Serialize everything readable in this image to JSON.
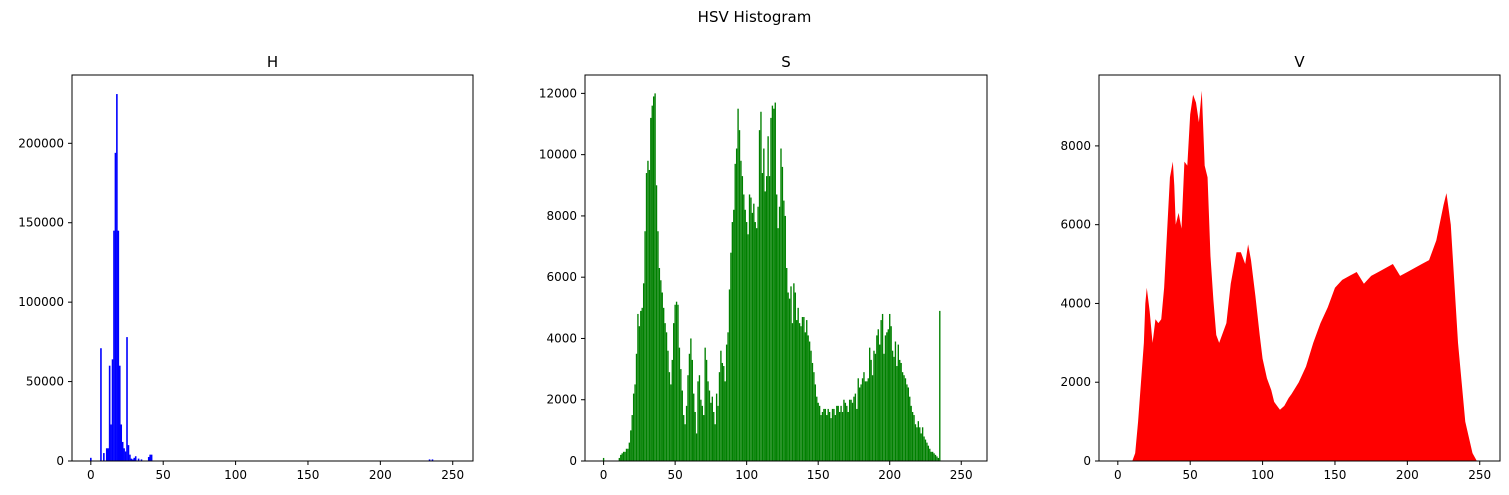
{
  "figure": {
    "suptitle": "HSV Histogram"
  },
  "chart_data": [
    {
      "type": "bar",
      "title": "H",
      "color": "#0000ff",
      "xlim": [
        -13,
        264
      ],
      "ylim": [
        0,
        243000
      ],
      "xticks": [
        0,
        50,
        100,
        150,
        200,
        250
      ],
      "yticks": [
        0,
        50000,
        100000,
        150000,
        200000
      ],
      "x": [
        0,
        7,
        9,
        11,
        12,
        13,
        14,
        15,
        16,
        17,
        18,
        19,
        20,
        21,
        22,
        23,
        24,
        25,
        26,
        27,
        28,
        29,
        30,
        31,
        33,
        35,
        40,
        41,
        42,
        234,
        236
      ],
      "values": [
        2000,
        71000,
        5000,
        8000,
        8000,
        60000,
        23000,
        64000,
        145000,
        194000,
        231000,
        145000,
        60000,
        23000,
        12000,
        8000,
        6000,
        78000,
        10000,
        4000,
        1500,
        1000,
        2000,
        3000,
        1500,
        1000,
        2500,
        4000,
        4000,
        1000,
        1000
      ]
    },
    {
      "type": "bar",
      "title": "S",
      "color": "#008000",
      "xlim": [
        -13,
        268
      ],
      "ylim": [
        0,
        12600
      ],
      "xticks": [
        0,
        50,
        100,
        150,
        200,
        250
      ],
      "yticks": [
        0,
        2000,
        4000,
        6000,
        8000,
        10000,
        12000
      ],
      "x_range": [
        0,
        255
      ],
      "values": [
        100,
        0,
        0,
        0,
        0,
        0,
        0,
        0,
        0,
        0,
        0,
        100,
        200,
        250,
        300,
        300,
        400,
        400,
        600,
        1000,
        1500,
        2200,
        2500,
        3500,
        4800,
        4400,
        4900,
        5000,
        5800,
        7500,
        9400,
        9800,
        9500,
        11200,
        11600,
        11900,
        12000,
        9000,
        7500,
        6300,
        5900,
        5500,
        5000,
        4500,
        4200,
        3600,
        2900,
        2500,
        3300,
        4500,
        5100,
        5200,
        5100,
        3700,
        3000,
        2300,
        1500,
        1200,
        1800,
        2800,
        3500,
        4000,
        3300,
        2200,
        1600,
        900,
        2600,
        2800,
        2000,
        1800,
        1500,
        3700,
        3300,
        2600,
        2300,
        1900,
        2100,
        1600,
        1200,
        2200,
        1800,
        2900,
        3600,
        3200,
        3100,
        2600,
        3800,
        4200,
        5600,
        6800,
        7800,
        8200,
        9700,
        10200,
        11500,
        10800,
        9800,
        9300,
        8700,
        8200,
        7800,
        7400,
        8700,
        8600,
        8100,
        8400,
        7800,
        7600,
        8300,
        10800,
        11400,
        9400,
        10200,
        8800,
        9300,
        10600,
        9300,
        11200,
        11600,
        11500,
        11700,
        8700,
        7600,
        8300,
        10200,
        9600,
        8500,
        8000,
        6300,
        5500,
        5300,
        5700,
        4500,
        5800,
        5500,
        4600,
        5000,
        4500,
        4400,
        4700,
        4700,
        4200,
        4600,
        4100,
        3900,
        3600,
        3200,
        2900,
        2500,
        2100,
        1900,
        1800,
        1500,
        1600,
        1700,
        1700,
        1500,
        1700,
        1600,
        1400,
        1700,
        1700,
        1500,
        1800,
        1800,
        1600,
        1800,
        1600,
        2000,
        1900,
        1800,
        1600,
        2000,
        2000,
        1900,
        2100,
        2200,
        1700,
        2700,
        2400,
        2500,
        2700,
        2900,
        2600,
        2600,
        2700,
        3700,
        3300,
        2800,
        3600,
        3500,
        4100,
        4300,
        3800,
        4600,
        4800,
        3500,
        4100,
        4200,
        4300,
        4800,
        4400,
        3600,
        3400,
        3900,
        3100,
        3800,
        3300,
        3200,
        2900,
        2800,
        2700,
        2500,
        2400,
        2100,
        1800,
        1600,
        1500,
        1200,
        1100,
        1300,
        1100,
        900,
        1100,
        800,
        700,
        600,
        500,
        400,
        300,
        300,
        250,
        200,
        150,
        100,
        4900
      ]
    },
    {
      "type": "area",
      "title": "V",
      "color": "#ff0000",
      "xlim": [
        -13,
        264
      ],
      "ylim": [
        0,
        9800
      ],
      "xticks": [
        0,
        50,
        100,
        150,
        200,
        250
      ],
      "yticks": [
        0,
        2000,
        4000,
        6000,
        8000
      ],
      "x": [
        0,
        10,
        12,
        14,
        16,
        18,
        19,
        20,
        22,
        24,
        26,
        28,
        30,
        32,
        34,
        36,
        38,
        39,
        40,
        42,
        44,
        46,
        48,
        50,
        52,
        54,
        56,
        58,
        60,
        62,
        64,
        66,
        68,
        70,
        72,
        75,
        78,
        82,
        85,
        88,
        90,
        92,
        95,
        98,
        100,
        103,
        106,
        108,
        110,
        112,
        115,
        118,
        120,
        125,
        130,
        135,
        140,
        145,
        150,
        155,
        160,
        165,
        170,
        175,
        180,
        185,
        190,
        195,
        200,
        205,
        210,
        215,
        220,
        225,
        227,
        230,
        235,
        240,
        245,
        248,
        250
      ],
      "values": [
        0,
        0,
        200,
        1000,
        2000,
        3000,
        4000,
        4400,
        3800,
        3000,
        3600,
        3500,
        3600,
        4400,
        5800,
        7200,
        7600,
        7000,
        6000,
        6300,
        5900,
        7600,
        7500,
        8800,
        9300,
        9100,
        8600,
        9400,
        7500,
        7200,
        5200,
        4100,
        3200,
        3000,
        3200,
        3500,
        4500,
        5300,
        5300,
        5000,
        5500,
        5100,
        4200,
        3200,
        2600,
        2100,
        1800,
        1500,
        1400,
        1300,
        1400,
        1600,
        1700,
        2000,
        2400,
        3000,
        3500,
        3900,
        4400,
        4600,
        4700,
        4800,
        4500,
        4700,
        4800,
        4900,
        5000,
        4700,
        4800,
        4900,
        5000,
        5100,
        5600,
        6500,
        6800,
        6000,
        3000,
        1000,
        200,
        0,
        0
      ]
    }
  ]
}
